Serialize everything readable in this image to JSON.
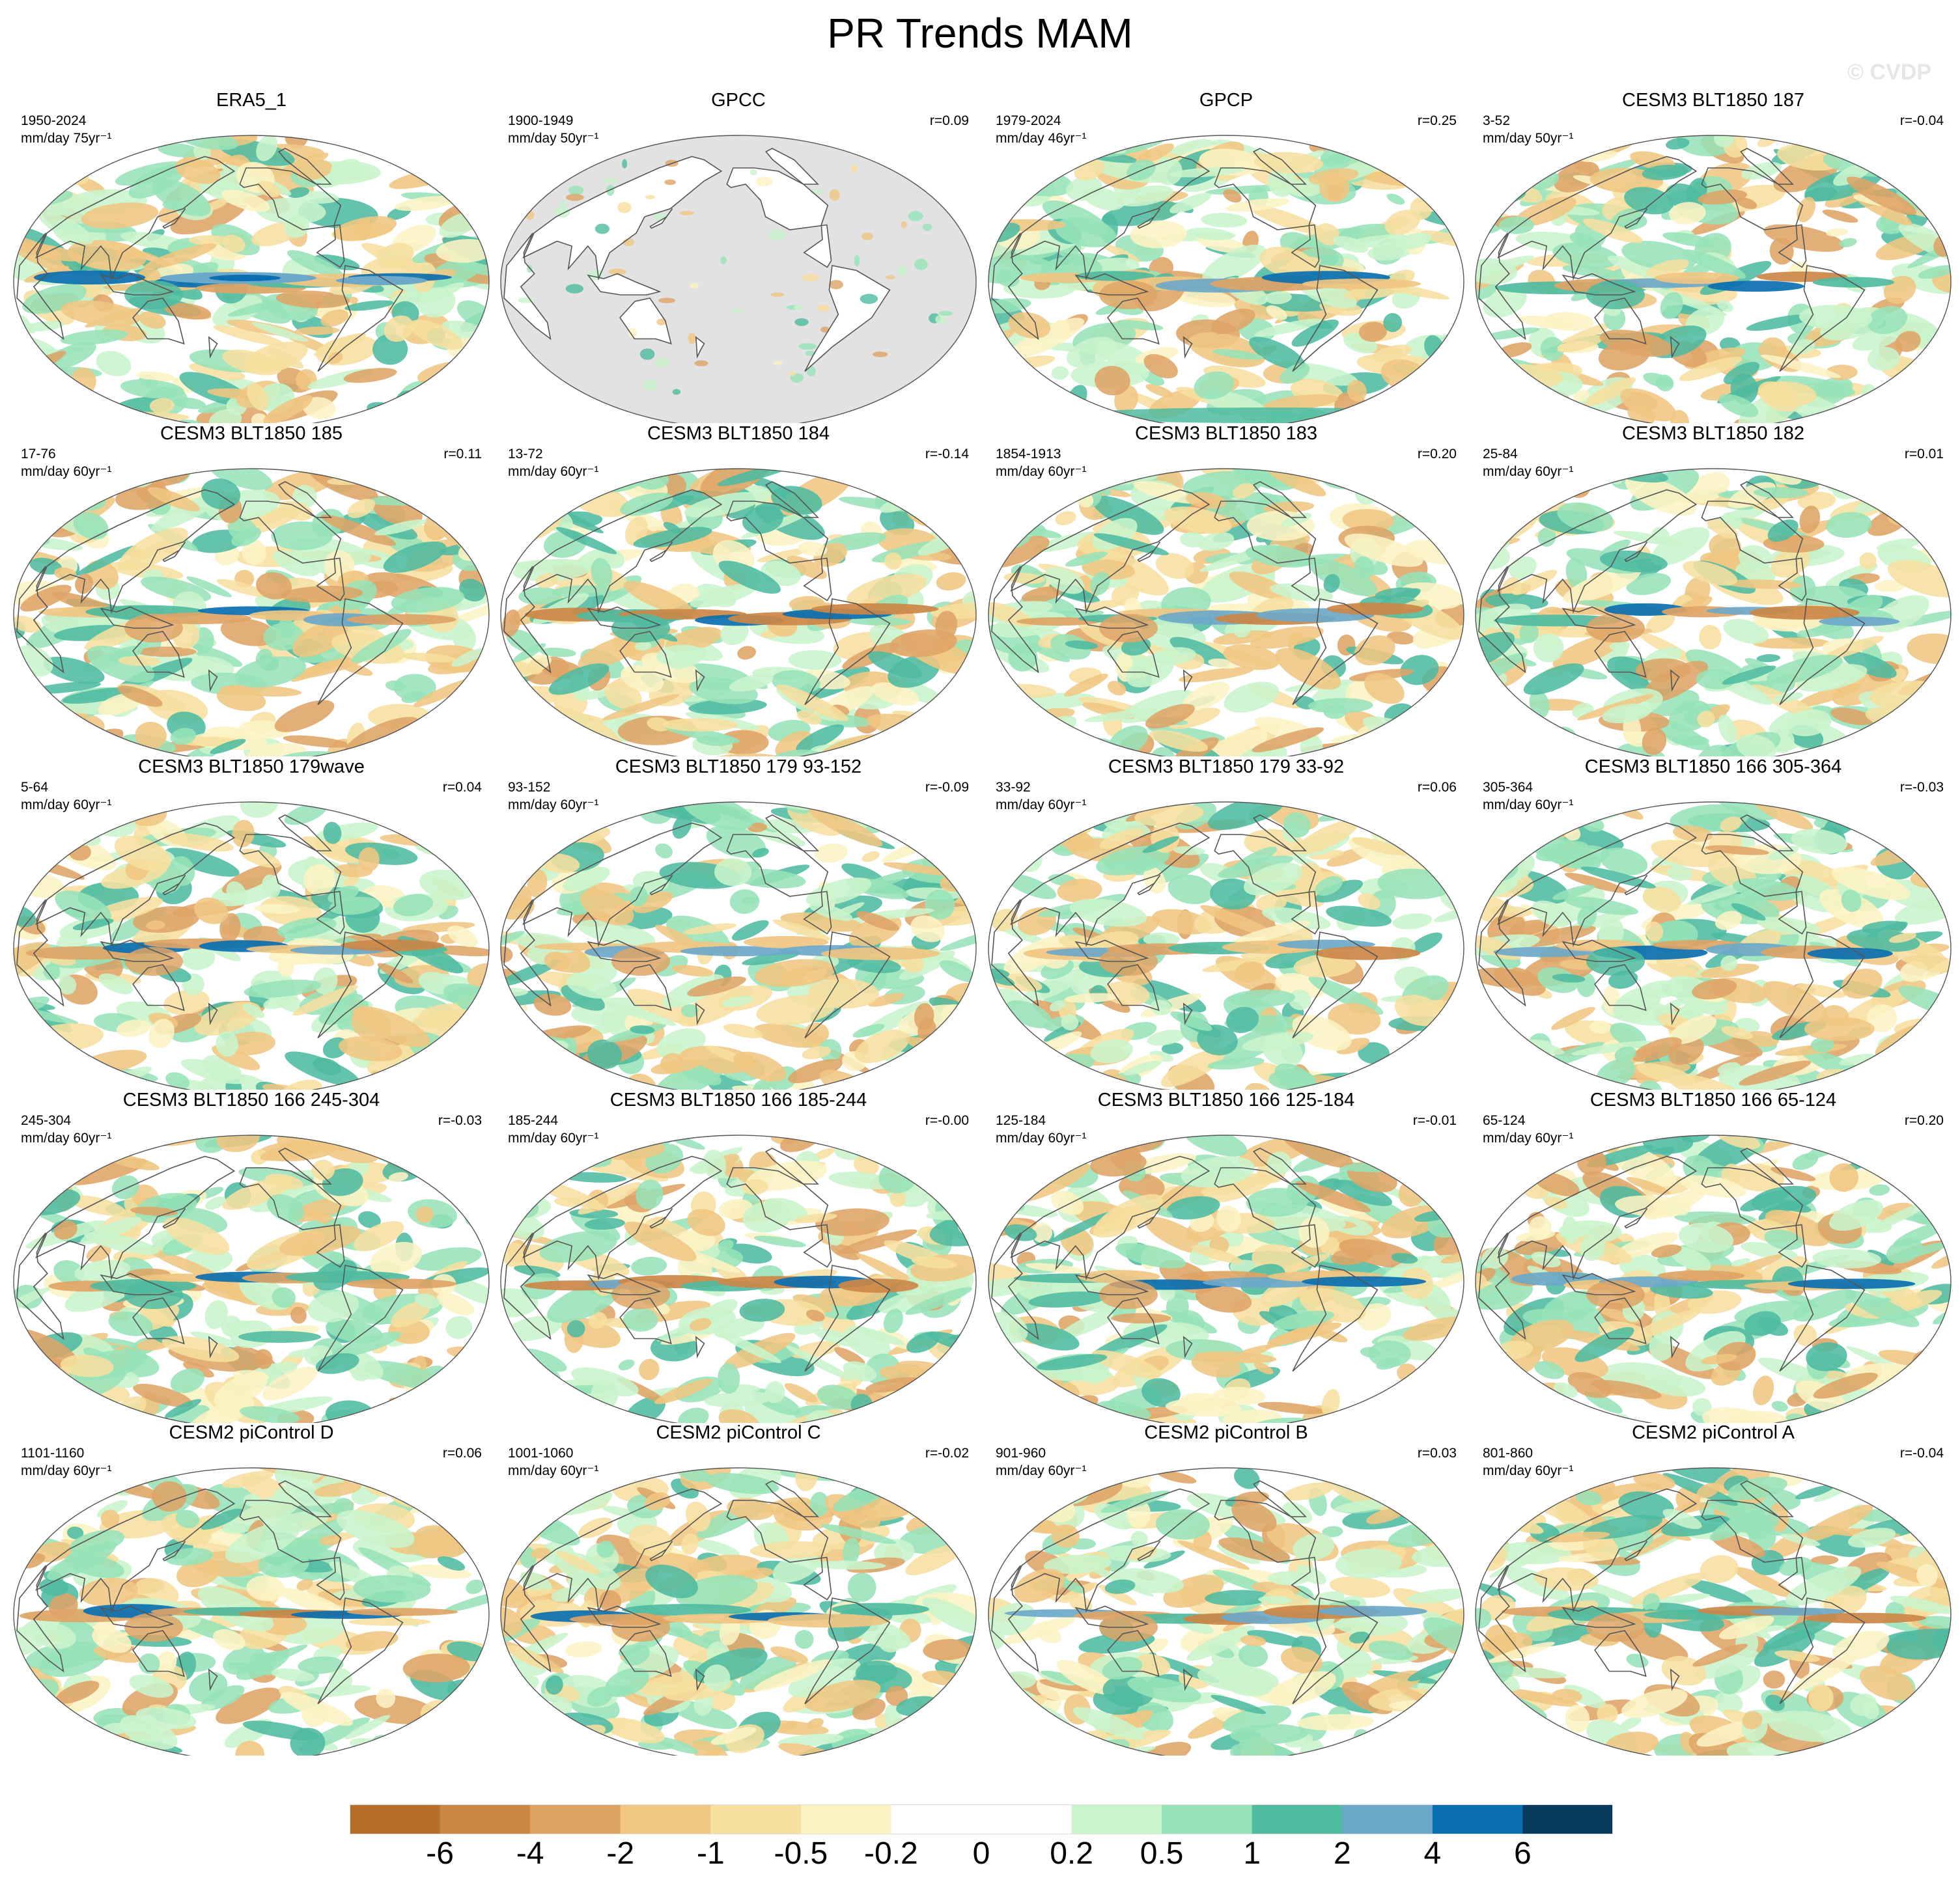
{
  "title": "PR Trends MAM",
  "watermark": "© CVDP",
  "units_label": "mm/day",
  "panels": [
    {
      "title": "ERA5_1",
      "years": "1950-2024",
      "units": "mm/day 75yr⁻¹",
      "r": "",
      "style": "era5",
      "seed": 11
    },
    {
      "title": "GPCC",
      "years": "1900-1949",
      "units": "mm/day 50yr⁻¹",
      "r": "r=0.09",
      "style": "gpcc",
      "seed": 23
    },
    {
      "title": "GPCP",
      "years": "1979-2024",
      "units": "mm/day 46yr⁻¹",
      "r": "r=0.25",
      "style": "gpcp",
      "seed": 37
    },
    {
      "title": "CESM3 BLT1850 187",
      "years": "3-52",
      "units": "mm/day 50yr⁻¹",
      "r": "r=-0.04",
      "style": "model",
      "seed": 41
    },
    {
      "title": "CESM3 BLT1850 185",
      "years": "17-76",
      "units": "mm/day 60yr⁻¹",
      "r": "r=0.11",
      "style": "model",
      "seed": 53
    },
    {
      "title": "CESM3 BLT1850 184",
      "years": "13-72",
      "units": "mm/day 60yr⁻¹",
      "r": "r=-0.14",
      "style": "model",
      "seed": 67
    },
    {
      "title": "CESM3 BLT1850 183",
      "years": "1854-1913",
      "units": "mm/day 60yr⁻¹",
      "r": "r=0.20",
      "style": "model",
      "seed": 71
    },
    {
      "title": "CESM3 BLT1850 182",
      "years": "25-84",
      "units": "mm/day 60yr⁻¹",
      "r": "r=0.01",
      "style": "model",
      "seed": 83
    },
    {
      "title": "CESM3 BLT1850 179wave",
      "years": "5-64",
      "units": "mm/day 60yr⁻¹",
      "r": "r=0.04",
      "style": "model",
      "seed": 97
    },
    {
      "title": "CESM3 BLT1850 179 93-152",
      "years": "93-152",
      "units": "mm/day 60yr⁻¹",
      "r": "r=-0.09",
      "style": "model",
      "seed": 101
    },
    {
      "title": "CESM3 BLT1850 179 33-92",
      "years": "33-92",
      "units": "mm/day 60yr⁻¹",
      "r": "r=0.06",
      "style": "model",
      "seed": 113
    },
    {
      "title": "CESM3 BLT1850 166 305-364",
      "years": "305-364",
      "units": "mm/day 60yr⁻¹",
      "r": "r=-0.03",
      "style": "model",
      "seed": 127
    },
    {
      "title": "CESM3 BLT1850 166 245-304",
      "years": "245-304",
      "units": "mm/day 60yr⁻¹",
      "r": "r=-0.03",
      "style": "model",
      "seed": 131
    },
    {
      "title": "CESM3 BLT1850 166 185-244",
      "years": "185-244",
      "units": "mm/day 60yr⁻¹",
      "r": "r=-0.00",
      "style": "model",
      "seed": 149
    },
    {
      "title": "CESM3 BLT1850 166 125-184",
      "years": "125-184",
      "units": "mm/day 60yr⁻¹",
      "r": "r=-0.01",
      "style": "model",
      "seed": 157
    },
    {
      "title": "CESM3 BLT1850 166 65-124",
      "years": "65-124",
      "units": "mm/day 60yr⁻¹",
      "r": "r=0.20",
      "style": "model",
      "seed": 163
    },
    {
      "title": "CESM2 piControl D",
      "years": "1101-1160",
      "units": "mm/day 60yr⁻¹",
      "r": "r=0.06",
      "style": "model",
      "seed": 173
    },
    {
      "title": "CESM2 piControl C",
      "years": "1001-1060",
      "units": "mm/day 60yr⁻¹",
      "r": "r=-0.02",
      "style": "model",
      "seed": 181
    },
    {
      "title": "CESM2 piControl B",
      "years": "901-960",
      "units": "mm/day 60yr⁻¹",
      "r": "r=0.03",
      "style": "model",
      "seed": 191
    },
    {
      "title": "CESM2 piControl A",
      "years": "801-860",
      "units": "mm/day 60yr⁻¹",
      "r": "r=-0.04",
      "style": "model",
      "seed": 199
    }
  ],
  "colorbar": {
    "colors": [
      "#b76e2b",
      "#cc8747",
      "#dea466",
      "#f0c682",
      "#f6df9f",
      "#fcf3c4",
      "#ffffff",
      "#ffffff",
      "#c9f4cc",
      "#97e3b8",
      "#4fbba0",
      "#6ca8c9",
      "#0a6fb0",
      "#073a5c"
    ],
    "labels": [
      "-6",
      "-4",
      "-2",
      "-1",
      "-0.5",
      "-0.2",
      "0",
      "0.2",
      "0.5",
      "1",
      "2",
      "4",
      "6"
    ]
  }
}
